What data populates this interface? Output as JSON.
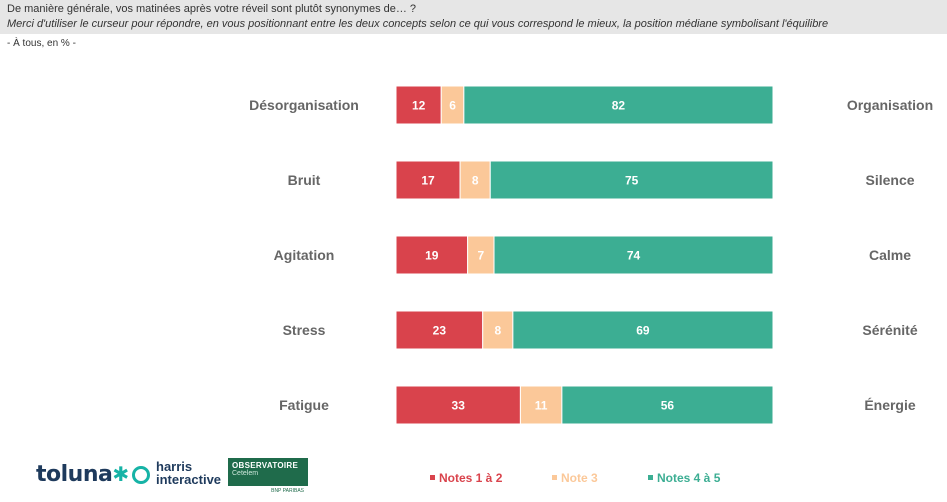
{
  "header": {
    "question": "De manière générale, vos matinées après votre réveil sont plutôt synonymes de… ?",
    "instruction": "Merci d'utiliser le curseur pour répondre, en vous positionnant entre les deux concepts selon ce qui vous correspond le mieux, la position médiane symbolisant l'équilibre",
    "base": "- À tous, en % -"
  },
  "colors": {
    "notes_1_2": "#d9434c",
    "note_3": "#fbc899",
    "notes_4_5": "#3cae93"
  },
  "chart_data": {
    "type": "bar",
    "orientation": "horizontal",
    "stacked": true,
    "categories_left": [
      "Désorganisation",
      "Bruit",
      "Agitation",
      "Stress",
      "Fatigue"
    ],
    "categories_right": [
      "Organisation",
      "Silence",
      "Calme",
      "Sérénité",
      "Énergie"
    ],
    "series": [
      {
        "name": "Notes 1 à 2",
        "values": [
          12,
          17,
          19,
          23,
          33
        ]
      },
      {
        "name": "Note 3",
        "values": [
          6,
          8,
          7,
          8,
          11
        ]
      },
      {
        "name": "Notes 4 à 5",
        "values": [
          82,
          75,
          74,
          69,
          56
        ]
      }
    ],
    "xlim": [
      0,
      100
    ],
    "grid": false,
    "legend_position": "bottom"
  },
  "logos": {
    "toluna": "toluna",
    "harris_line1": "harris",
    "harris_line2": "interactive",
    "observatoire_title": "OBSERVATOIRE",
    "observatoire_sub": "Cetelem",
    "observatoire_foot": "BNP PARIBAS"
  },
  "legend": [
    "Notes 1 à 2",
    "Note 3",
    "Notes 4 à 5"
  ]
}
